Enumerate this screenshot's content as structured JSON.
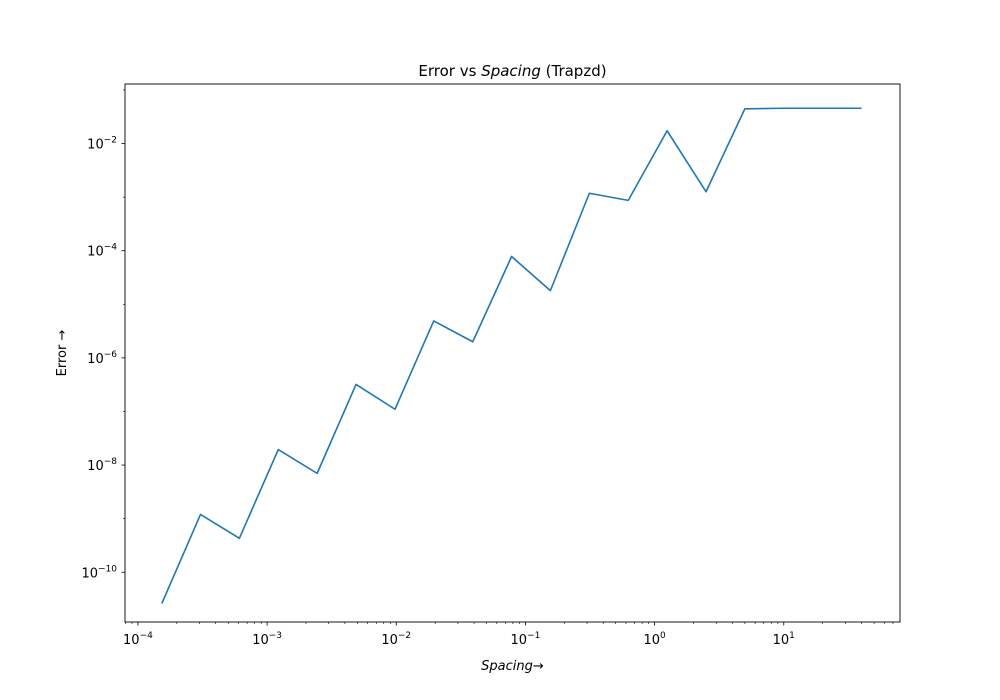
{
  "chart_data": {
    "type": "line",
    "title": {
      "pre": "Error vs ",
      "italic": "Spacing",
      "post": " (Trapzd)"
    },
    "xlabel": {
      "italic": "Spacing",
      "post": "→"
    },
    "ylabel": "Error →",
    "xscale": "log",
    "yscale": "log",
    "xlim": [
      7.94e-05,
      79.4
    ],
    "ylim": [
      1.18e-11,
      0.129
    ],
    "grid": false,
    "x_ticks": [
      {
        "value": 0.0001,
        "base": "10",
        "exp": "−4"
      },
      {
        "value": 0.001,
        "base": "10",
        "exp": "−3"
      },
      {
        "value": 0.01,
        "base": "10",
        "exp": "−2"
      },
      {
        "value": 0.1,
        "base": "10",
        "exp": "−1"
      },
      {
        "value": 1,
        "base": "10",
        "exp": "0"
      },
      {
        "value": 10,
        "base": "10",
        "exp": "1"
      }
    ],
    "y_ticks": [
      {
        "value": 1e-10,
        "base": "10",
        "exp": "−10"
      },
      {
        "value": 1e-08,
        "base": "10",
        "exp": "−8"
      },
      {
        "value": 1e-06,
        "base": "10",
        "exp": "−6"
      },
      {
        "value": 0.0001,
        "base": "10",
        "exp": "−4"
      },
      {
        "value": 0.01,
        "base": "10",
        "exp": "−2"
      }
    ],
    "series": [
      {
        "color": "#1f77b4",
        "x": [
          0.000153,
          0.000305,
          0.00061,
          0.00122,
          0.00244,
          0.00488,
          0.00977,
          0.0195,
          0.0391,
          0.0781,
          0.156,
          0.3125,
          0.625,
          1.25,
          2.5,
          5,
          10,
          20,
          40
        ],
        "y": [
          2.6e-11,
          1.2e-09,
          4.3e-10,
          1.95e-08,
          7e-09,
          3.2e-07,
          1.1e-07,
          4.9e-06,
          2e-06,
          7.8e-05,
          1.8e-05,
          0.00118,
          0.00087,
          0.0173,
          0.00126,
          0.0445,
          0.0455,
          0.0455,
          0.0455
        ]
      }
    ]
  }
}
